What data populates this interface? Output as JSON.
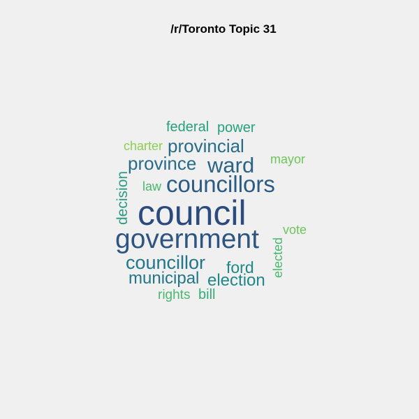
{
  "title": "/r/Toronto Topic 31",
  "words": [
    {
      "text": "council",
      "color": "#2b4a7e"
    },
    {
      "text": "government",
      "color": "#2e5580"
    },
    {
      "text": "councillors",
      "color": "#2b5b84"
    },
    {
      "text": "ward",
      "color": "#2b6486"
    },
    {
      "text": "councillor",
      "color": "#22768a"
    },
    {
      "text": "provincial",
      "color": "#286b89"
    },
    {
      "text": "province",
      "color": "#286b89"
    },
    {
      "text": "municipal",
      "color": "#22768a"
    },
    {
      "text": "election",
      "color": "#1f878a"
    },
    {
      "text": "ford",
      "color": "#1f878a"
    },
    {
      "text": "federal",
      "color": "#25a07f"
    },
    {
      "text": "power",
      "color": "#25a07f"
    },
    {
      "text": "decision",
      "color": "#2a9a82"
    },
    {
      "text": "bill",
      "color": "#35ac77"
    },
    {
      "text": "rights",
      "color": "#48b86e"
    },
    {
      "text": "elected",
      "color": "#48b86e"
    },
    {
      "text": "law",
      "color": "#48b86e"
    },
    {
      "text": "vote",
      "color": "#6dc65a"
    },
    {
      "text": "mayor",
      "color": "#6dc65a"
    },
    {
      "text": "charter",
      "color": "#8bcf50"
    }
  ]
}
